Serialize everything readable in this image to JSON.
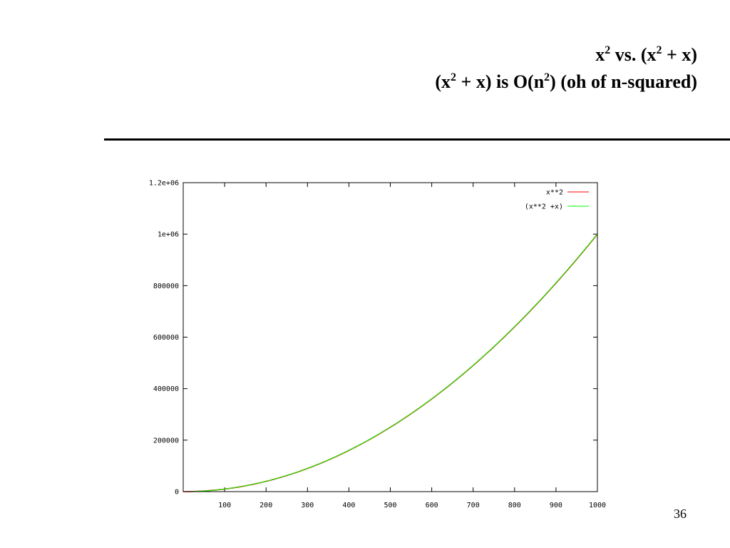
{
  "slide": {
    "title_line1": {
      "a": "x",
      "a_sup": "2",
      "b": " vs. (x",
      "b_sup": "2",
      "c": " + x)"
    },
    "title_line2": {
      "a": "(x",
      "a_sup": "2",
      "b": " + x) is O(n",
      "b_sup": "2",
      "c": ") (oh of n-squared)"
    },
    "page_number": "36"
  },
  "chart_data": {
    "type": "line",
    "x_range": [
      0,
      1000
    ],
    "y_range": [
      0,
      1200000
    ],
    "x_ticks": [
      {
        "value": 100,
        "label": "100"
      },
      {
        "value": 200,
        "label": "200"
      },
      {
        "value": 300,
        "label": "300"
      },
      {
        "value": 400,
        "label": "400"
      },
      {
        "value": 500,
        "label": "500"
      },
      {
        "value": 600,
        "label": "600"
      },
      {
        "value": 700,
        "label": "700"
      },
      {
        "value": 800,
        "label": "800"
      },
      {
        "value": 900,
        "label": "900"
      },
      {
        "value": 1000,
        "label": "1000"
      }
    ],
    "y_ticks": [
      {
        "value": 0,
        "label": "0"
      },
      {
        "value": 200000,
        "label": "200000"
      },
      {
        "value": 400000,
        "label": "400000"
      },
      {
        "value": 600000,
        "label": "600000"
      },
      {
        "value": 800000,
        "label": "800000"
      },
      {
        "value": 1000000,
        "label": "1e+06"
      },
      {
        "value": 1200000,
        "label": "1.2e+06"
      }
    ],
    "legend_position": "top-right",
    "series": [
      {
        "name": "x**2",
        "color": "#ff0000",
        "expression": "x^2",
        "x": [
          0,
          100,
          200,
          300,
          400,
          500,
          600,
          700,
          800,
          900,
          1000
        ],
        "y": [
          0,
          10000,
          40000,
          90000,
          160000,
          250000,
          360000,
          490000,
          640000,
          810000,
          1000000
        ]
      },
      {
        "name": "(x**2 +x)",
        "color": "#00ff00",
        "expression": "x^2 + x",
        "x": [
          0,
          100,
          200,
          300,
          400,
          500,
          600,
          700,
          800,
          900,
          1000
        ],
        "y": [
          0,
          10100,
          40200,
          90300,
          160400,
          250500,
          360600,
          490700,
          640800,
          810900,
          1001000
        ]
      }
    ]
  }
}
